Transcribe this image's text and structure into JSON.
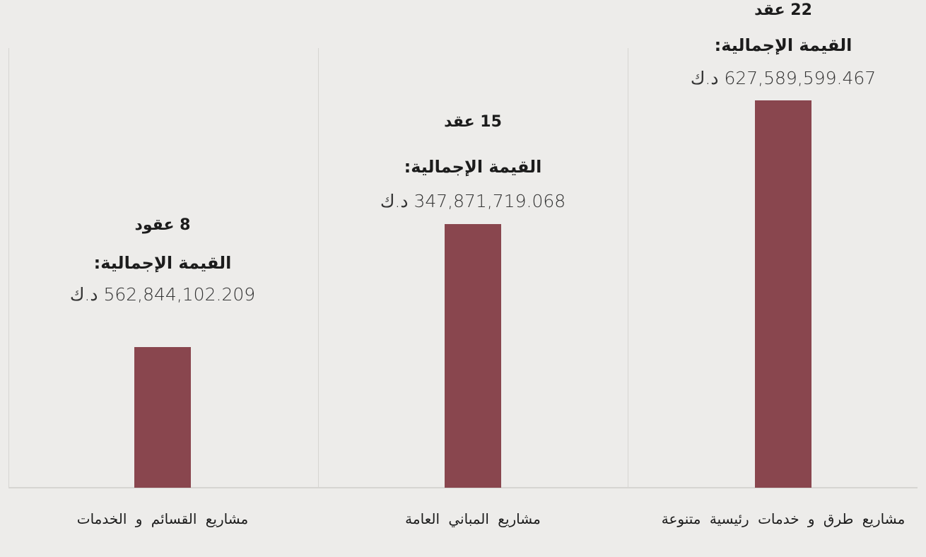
{
  "chart_data": {
    "type": "bar",
    "categories": [
      "مشاريع القسائم و الخدمات",
      "مشاريع المباني العامة",
      "مشاريع طرق و خدمات رئيسية متنوعة"
    ],
    "values": [
      8,
      15,
      22
    ],
    "value_labels": [
      "8 عقود",
      "15 عقد",
      "22 عقد"
    ],
    "total_labels": [
      "القيمة الإجمالية:",
      "القيمة الإجمالية:",
      "القيمة الإجمالية:"
    ],
    "totals": [
      "562,844,102.209 د.ك",
      "347,871,719.068 د.ك",
      "627,589,599.467 د.ك"
    ],
    "color": "#89464e"
  }
}
